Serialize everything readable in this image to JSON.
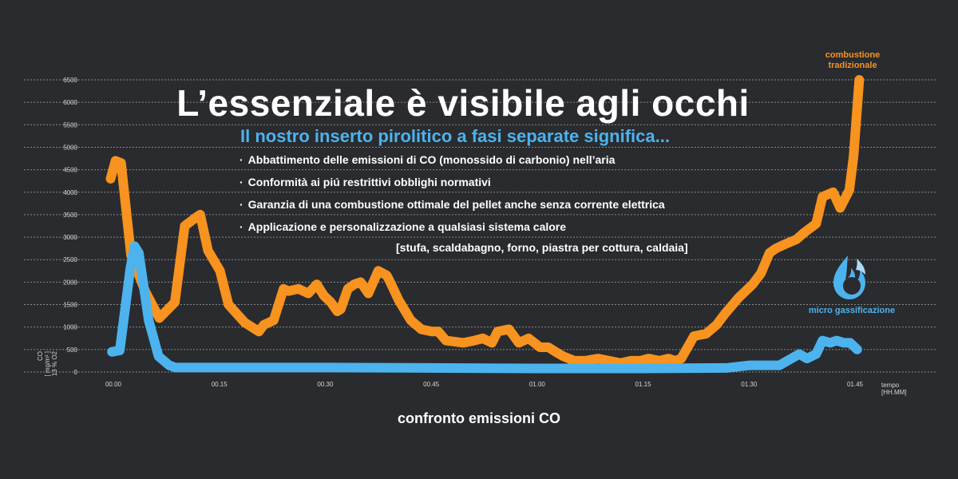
{
  "headline": "L’essenziale è visibile agli occhi",
  "subheadline": "Il nostro inserto pirolitico a fasi separate significa...",
  "bullets": [
    "Abbattimento delle emissioni di CO (monossido di carbonio) nell’aria",
    "Conformità ai piú restrittivi obblighi normativi",
    "Garanzia di una combustione ottimale del pellet anche senza corrente elettrica",
    "Applicazione e personalizzazione a qualsiasi sistema calore"
  ],
  "bracket_note": "[stufa, scaldabagno, forno, piastra per cottura, caldaia]",
  "caption": "confronto emissioni CO",
  "colors": {
    "background": "#2a2b2e",
    "traditional": "#f7931e",
    "micro": "#4cb3ee"
  },
  "icons": {
    "micro": "flame-drop-icon"
  },
  "chart_data": {
    "type": "line",
    "ylabel": [
      "CO",
      "[ mg/m³ ]",
      "13 % O2"
    ],
    "xlabel": [
      "tempo",
      "[HH.MM]"
    ],
    "ylim": [
      0,
      6500
    ],
    "yticks": [
      "0",
      "500",
      "1000",
      "1500",
      "2000",
      "2500",
      "3000",
      "3500",
      "4000",
      "4500",
      "5000",
      "5500",
      "6000",
      "6500"
    ],
    "xlim": [
      0,
      105
    ],
    "xticks": [
      {
        "value": 0,
        "label": "00.00"
      },
      {
        "value": 15,
        "label": "00.15"
      },
      {
        "value": 30,
        "label": "00.30"
      },
      {
        "value": 45,
        "label": "00.45"
      },
      {
        "value": 60,
        "label": "01.00"
      },
      {
        "value": 75,
        "label": "01.15"
      },
      {
        "value": 90,
        "label": "01.30"
      },
      {
        "value": 105,
        "label": "01.45"
      }
    ],
    "grid": true,
    "series": [
      {
        "name": "combustione tradizionale",
        "color": "#f7931e",
        "x": [
          -0.4,
          0.3,
          1.1,
          2.5,
          4.5,
          6.5,
          8.7,
          10.1,
          11.8,
          12.3,
          13.4,
          15.1,
          16.3,
          18.6,
          20.6,
          21.3,
          22.7,
          24.1,
          24.8,
          26.2,
          27.6,
          28.8,
          29.8,
          30.8,
          31.7,
          32.2,
          33.2,
          34.1,
          35.0,
          36.1,
          37.5,
          38.7,
          39.2,
          40.4,
          42.1,
          43.6,
          45.1,
          46.0,
          47.1,
          49.6,
          51.1,
          52.3,
          53.6,
          54.4,
          56.0,
          57.4,
          58.8,
          60.4,
          61.6,
          62.6,
          63.7,
          65.3,
          66.8,
          68.6,
          70.2,
          71.8,
          73.3,
          74.6,
          75.8,
          77.3,
          78.6,
          79.5,
          80.4,
          82.2,
          83.9,
          85.4,
          86.6,
          88.5,
          90.5,
          91.7,
          92.9,
          93.8,
          95.2,
          96.7,
          97.8,
          99.5,
          100.4,
          101.9,
          102.9,
          104.2,
          104.8,
          105.6
        ],
        "y": [
          4300,
          4700,
          4650,
          2600,
          1800,
          1200,
          1550,
          3250,
          3450,
          3500,
          2700,
          2250,
          1500,
          1100,
          900,
          1050,
          1150,
          1850,
          1800,
          1850,
          1750,
          1950,
          1700,
          1550,
          1350,
          1400,
          1850,
          1950,
          2000,
          1750,
          2250,
          2150,
          2000,
          1600,
          1150,
          950,
          900,
          900,
          700,
          650,
          700,
          750,
          650,
          900,
          950,
          650,
          750,
          550,
          550,
          450,
          350,
          250,
          250,
          300,
          250,
          200,
          250,
          250,
          300,
          250,
          300,
          250,
          300,
          800,
          850,
          1050,
          1300,
          1650,
          1950,
          2200,
          2650,
          2750,
          2850,
          2950,
          3100,
          3300,
          3900,
          4000,
          3650,
          4050,
          4800,
          6500
        ]
      },
      {
        "name": "micro gassificazione",
        "color": "#4cb3ee",
        "x": [
          -0.2,
          0.9,
          2.4,
          3.0,
          3.6,
          5.0,
          6.4,
          7.9,
          8.8,
          10.1,
          14.4,
          30.1,
          45.0,
          60.0,
          75.0,
          86.8,
          90.1,
          94.3,
          97.1,
          98.2,
          99.5,
          100.4,
          101.5,
          102.4,
          103.4,
          104.3,
          105.3
        ],
        "y": [
          450,
          480,
          2300,
          2800,
          2650,
          1150,
          350,
          150,
          100,
          100,
          100,
          100,
          90,
          80,
          80,
          90,
          150,
          150,
          400,
          300,
          400,
          700,
          650,
          700,
          650,
          650,
          500
        ]
      }
    ]
  }
}
